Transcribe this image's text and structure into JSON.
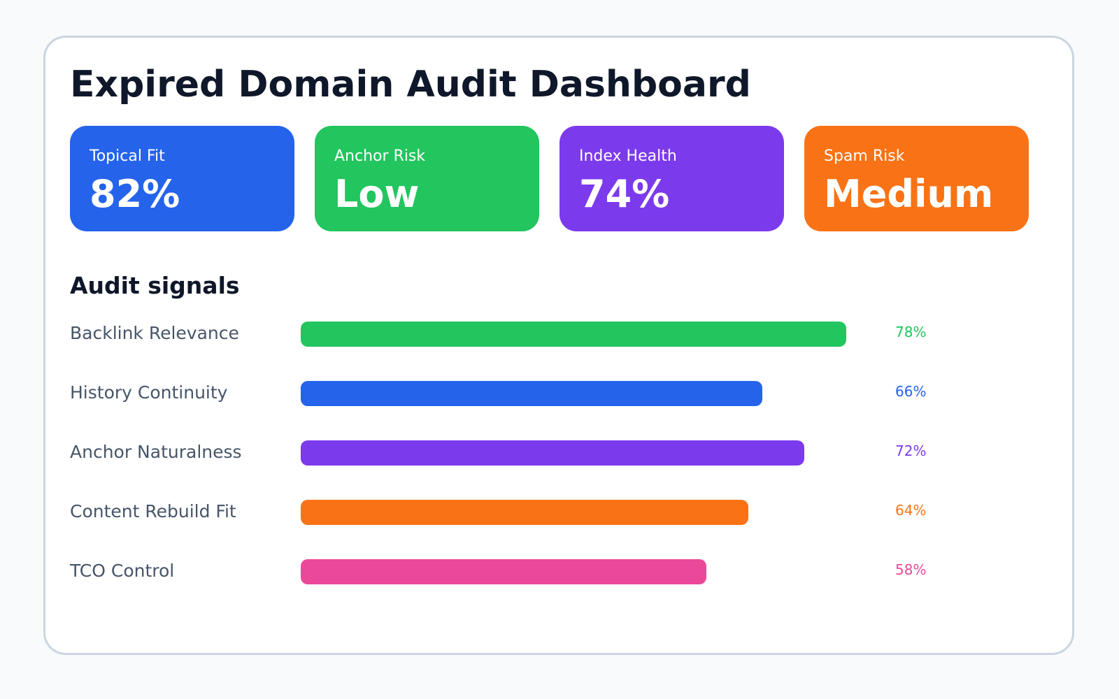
{
  "title": "Expired Domain Audit Dashboard",
  "cards": [
    {
      "label": "Topical Fit",
      "value": "82%",
      "color": "#2563eb"
    },
    {
      "label": "Anchor Risk",
      "value": "Low",
      "color": "#22c55e"
    },
    {
      "label": "Index Health",
      "value": "74%",
      "color": "#7c3aed"
    },
    {
      "label": "Spam Risk",
      "value": "Medium",
      "color": "#f97316"
    }
  ],
  "section_title": "Audit signals",
  "chart_data": {
    "type": "bar",
    "orientation": "horizontal",
    "categories": [
      "Backlink Relevance",
      "History Continuity",
      "Anchor Naturalness",
      "Content Rebuild Fit",
      "TCO Control"
    ],
    "values": [
      78,
      66,
      72,
      64,
      58
    ],
    "value_labels": [
      "78%",
      "66%",
      "72%",
      "64%",
      "58%"
    ],
    "colors": [
      "#22c55e",
      "#2563eb",
      "#7c3aed",
      "#f97316",
      "#ec4899"
    ],
    "xlim": [
      0,
      100
    ],
    "title": "",
    "xlabel": "",
    "ylabel": ""
  }
}
